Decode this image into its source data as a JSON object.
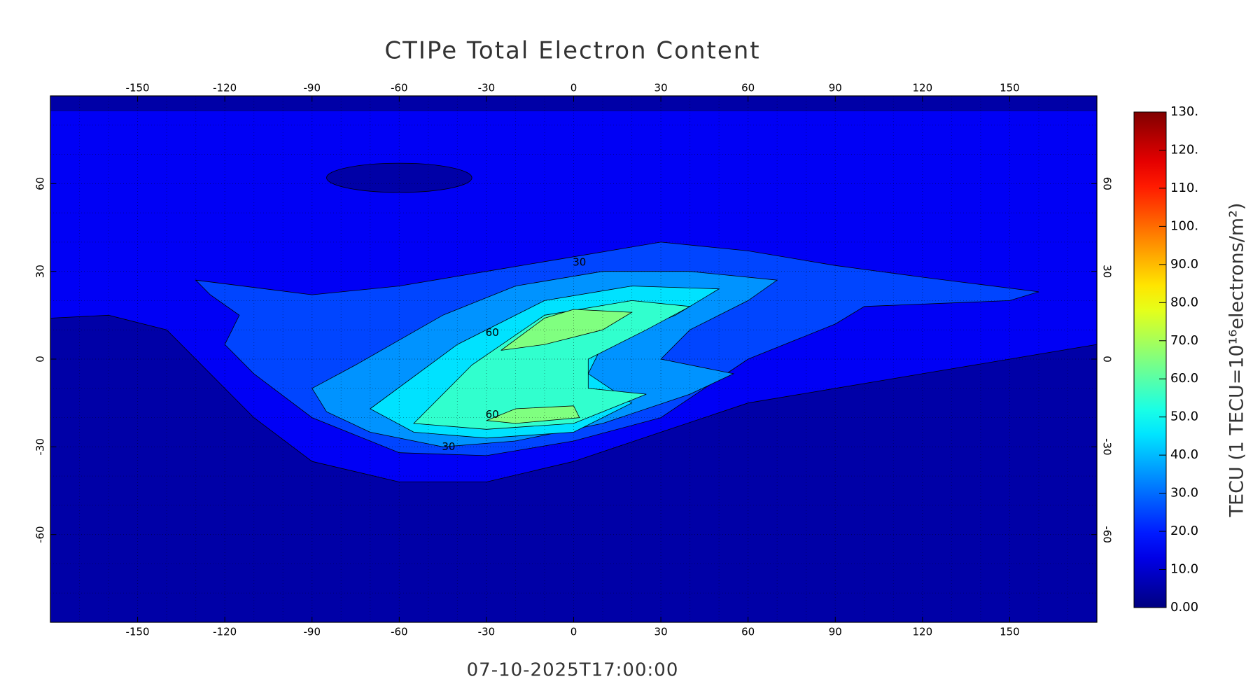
{
  "chart_data": {
    "type": "contour",
    "title": "CTIPe Total Electron Content",
    "timestamp": "07-10-2025T17:00:00",
    "xlim": [
      -180,
      180
    ],
    "ylim": [
      -90,
      90
    ],
    "xticks": [
      -150,
      -120,
      -90,
      -60,
      -30,
      0,
      30,
      60,
      90,
      120,
      150
    ],
    "yticks": [
      -60,
      -30,
      0,
      30,
      60
    ],
    "levels": [
      0,
      10,
      20,
      30,
      40,
      50,
      60
    ],
    "contour_labels": [
      30,
      60,
      60,
      30
    ],
    "colorbar": {
      "label": "TECU (1 TECU=10¹⁶electrons/m²)",
      "lim": [
        0,
        130
      ],
      "ticks": [
        {
          "value": 0,
          "label": "0.00"
        },
        {
          "value": 10,
          "label": "10.0"
        },
        {
          "value": 20,
          "label": "20.0"
        },
        {
          "value": 30,
          "label": "30.0"
        },
        {
          "value": 40,
          "label": "40.0"
        },
        {
          "value": 50,
          "label": "50.0"
        },
        {
          "value": 60,
          "label": "60.0"
        },
        {
          "value": 70,
          "label": "70.0"
        },
        {
          "value": 80,
          "label": "80.0"
        },
        {
          "value": 90,
          "label": "90.0"
        },
        {
          "value": 100,
          "label": "100."
        },
        {
          "value": 110,
          "label": "110."
        },
        {
          "value": 120,
          "label": "120."
        },
        {
          "value": 130,
          "label": "130."
        }
      ]
    },
    "colormap": "jet"
  }
}
